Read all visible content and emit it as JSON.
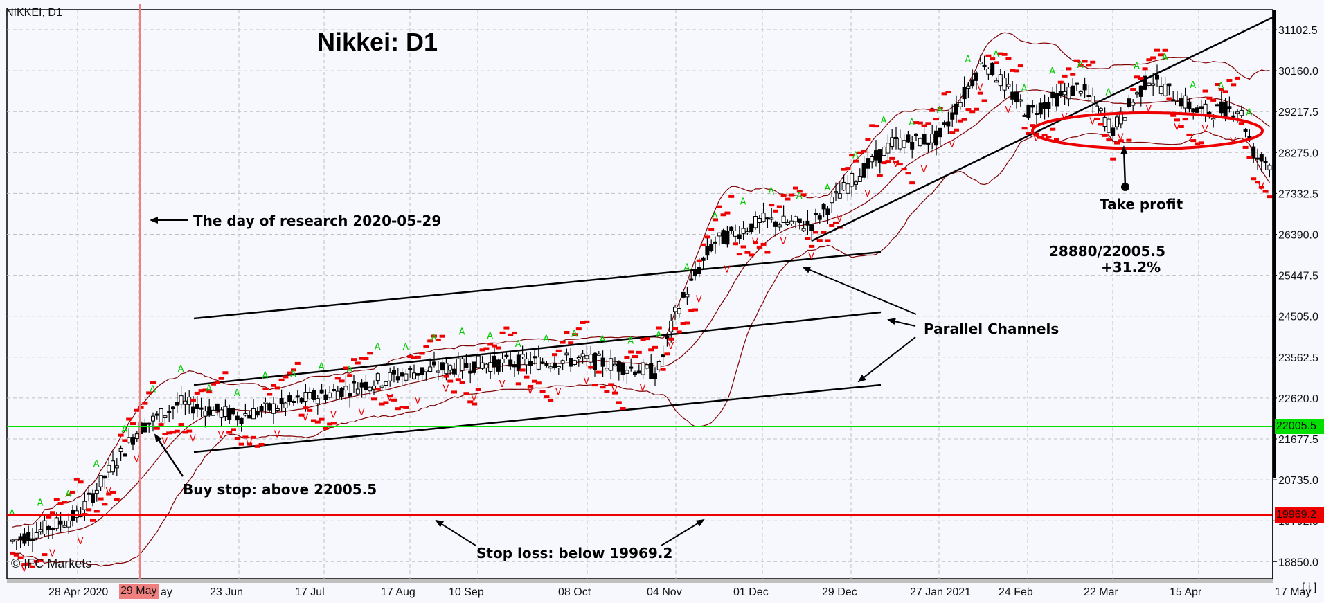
{
  "header": {
    "symbol_label": "NIKKEI, D1",
    "chart_title": "Nikkei: D1",
    "copyright": "© IFC Markets"
  },
  "colors": {
    "background": "#f7f8fd",
    "grid": "#c0c0c0",
    "buy_stop_line": "#00e000",
    "stop_loss_line": "#ee0000",
    "research_day_line": "#f08080",
    "bollinger": "#800000",
    "parabolic_sar": "#ee0000",
    "fractal_up": "#00cc00",
    "fractal_down": "#ee0000",
    "candle_bull": "#ffffff",
    "candle_bear": "#000000"
  },
  "annotations": {
    "research_day": "The day of research 2020-05-29",
    "buy_stop": "Buy stop: above 22005.5",
    "stop_loss": "Stop loss: below 19969.2",
    "parallel_channels": "Parallel Channels",
    "take_profit": "Take profit",
    "profit_ratio": "28880/22005.5",
    "profit_pct": "+31.2%"
  },
  "price_tags": {
    "buy_stop": "22005.5",
    "stop_loss": "19969.2"
  },
  "info_button": "[ i ]",
  "highlight_date": "29 May",
  "chart_data": {
    "type": "candlestick",
    "title": "Nikkei: D1",
    "symbol": "NIKKEI",
    "timeframe": "D1",
    "xlabel": "",
    "ylabel": "",
    "ylim": [
      18850.0,
      31102.5
    ],
    "grid": true,
    "y_ticks": [
      "31102.5",
      "30160.0",
      "29217.5",
      "28275.0",
      "27332.5",
      "26390.0",
      "25447.5",
      "24505.0",
      "23562.5",
      "22620.0",
      "21677.5",
      "20735.0",
      "19792.5",
      "18850.0"
    ],
    "x_ticks": [
      "28 Apr 2020",
      "29 May",
      "23 Jun",
      "17 Jul",
      "17 Aug",
      "10 Sep",
      "08 Oct",
      "04 Nov",
      "01 Dec",
      "29 Dec",
      "27 Jan 2021",
      "24 Feb",
      "22 Mar",
      "15 Apr",
      "17 May"
    ],
    "horizontal_levels": [
      {
        "name": "Buy stop",
        "value": 22005.5
      },
      {
        "name": "Stop loss",
        "value": 19969.2
      }
    ],
    "vertical_markers": [
      {
        "name": "Research day",
        "date": "2020-05-29"
      }
    ],
    "indicators": [
      "Bollinger Bands",
      "Parabolic SAR",
      "Fractals"
    ],
    "approx_close_path": {
      "dates": [
        "Apr 2020",
        "28 Apr",
        "29 May",
        "23 Jun",
        "17 Jul",
        "17 Aug",
        "10 Sep",
        "08 Oct",
        "04 Nov",
        "01 Dec",
        "29 Dec",
        "27 Jan 2021",
        "24 Feb",
        "22 Mar",
        "15 Apr",
        "17 May"
      ],
      "values": [
        19300,
        19800,
        21900,
        22300,
        22700,
        23200,
        23300,
        23400,
        24100,
        26600,
        27200,
        28500,
        29600,
        29300,
        29600,
        28100
      ]
    },
    "take_profit": 28880,
    "entry": 22005.5,
    "expected_gain_pct": 31.2
  }
}
